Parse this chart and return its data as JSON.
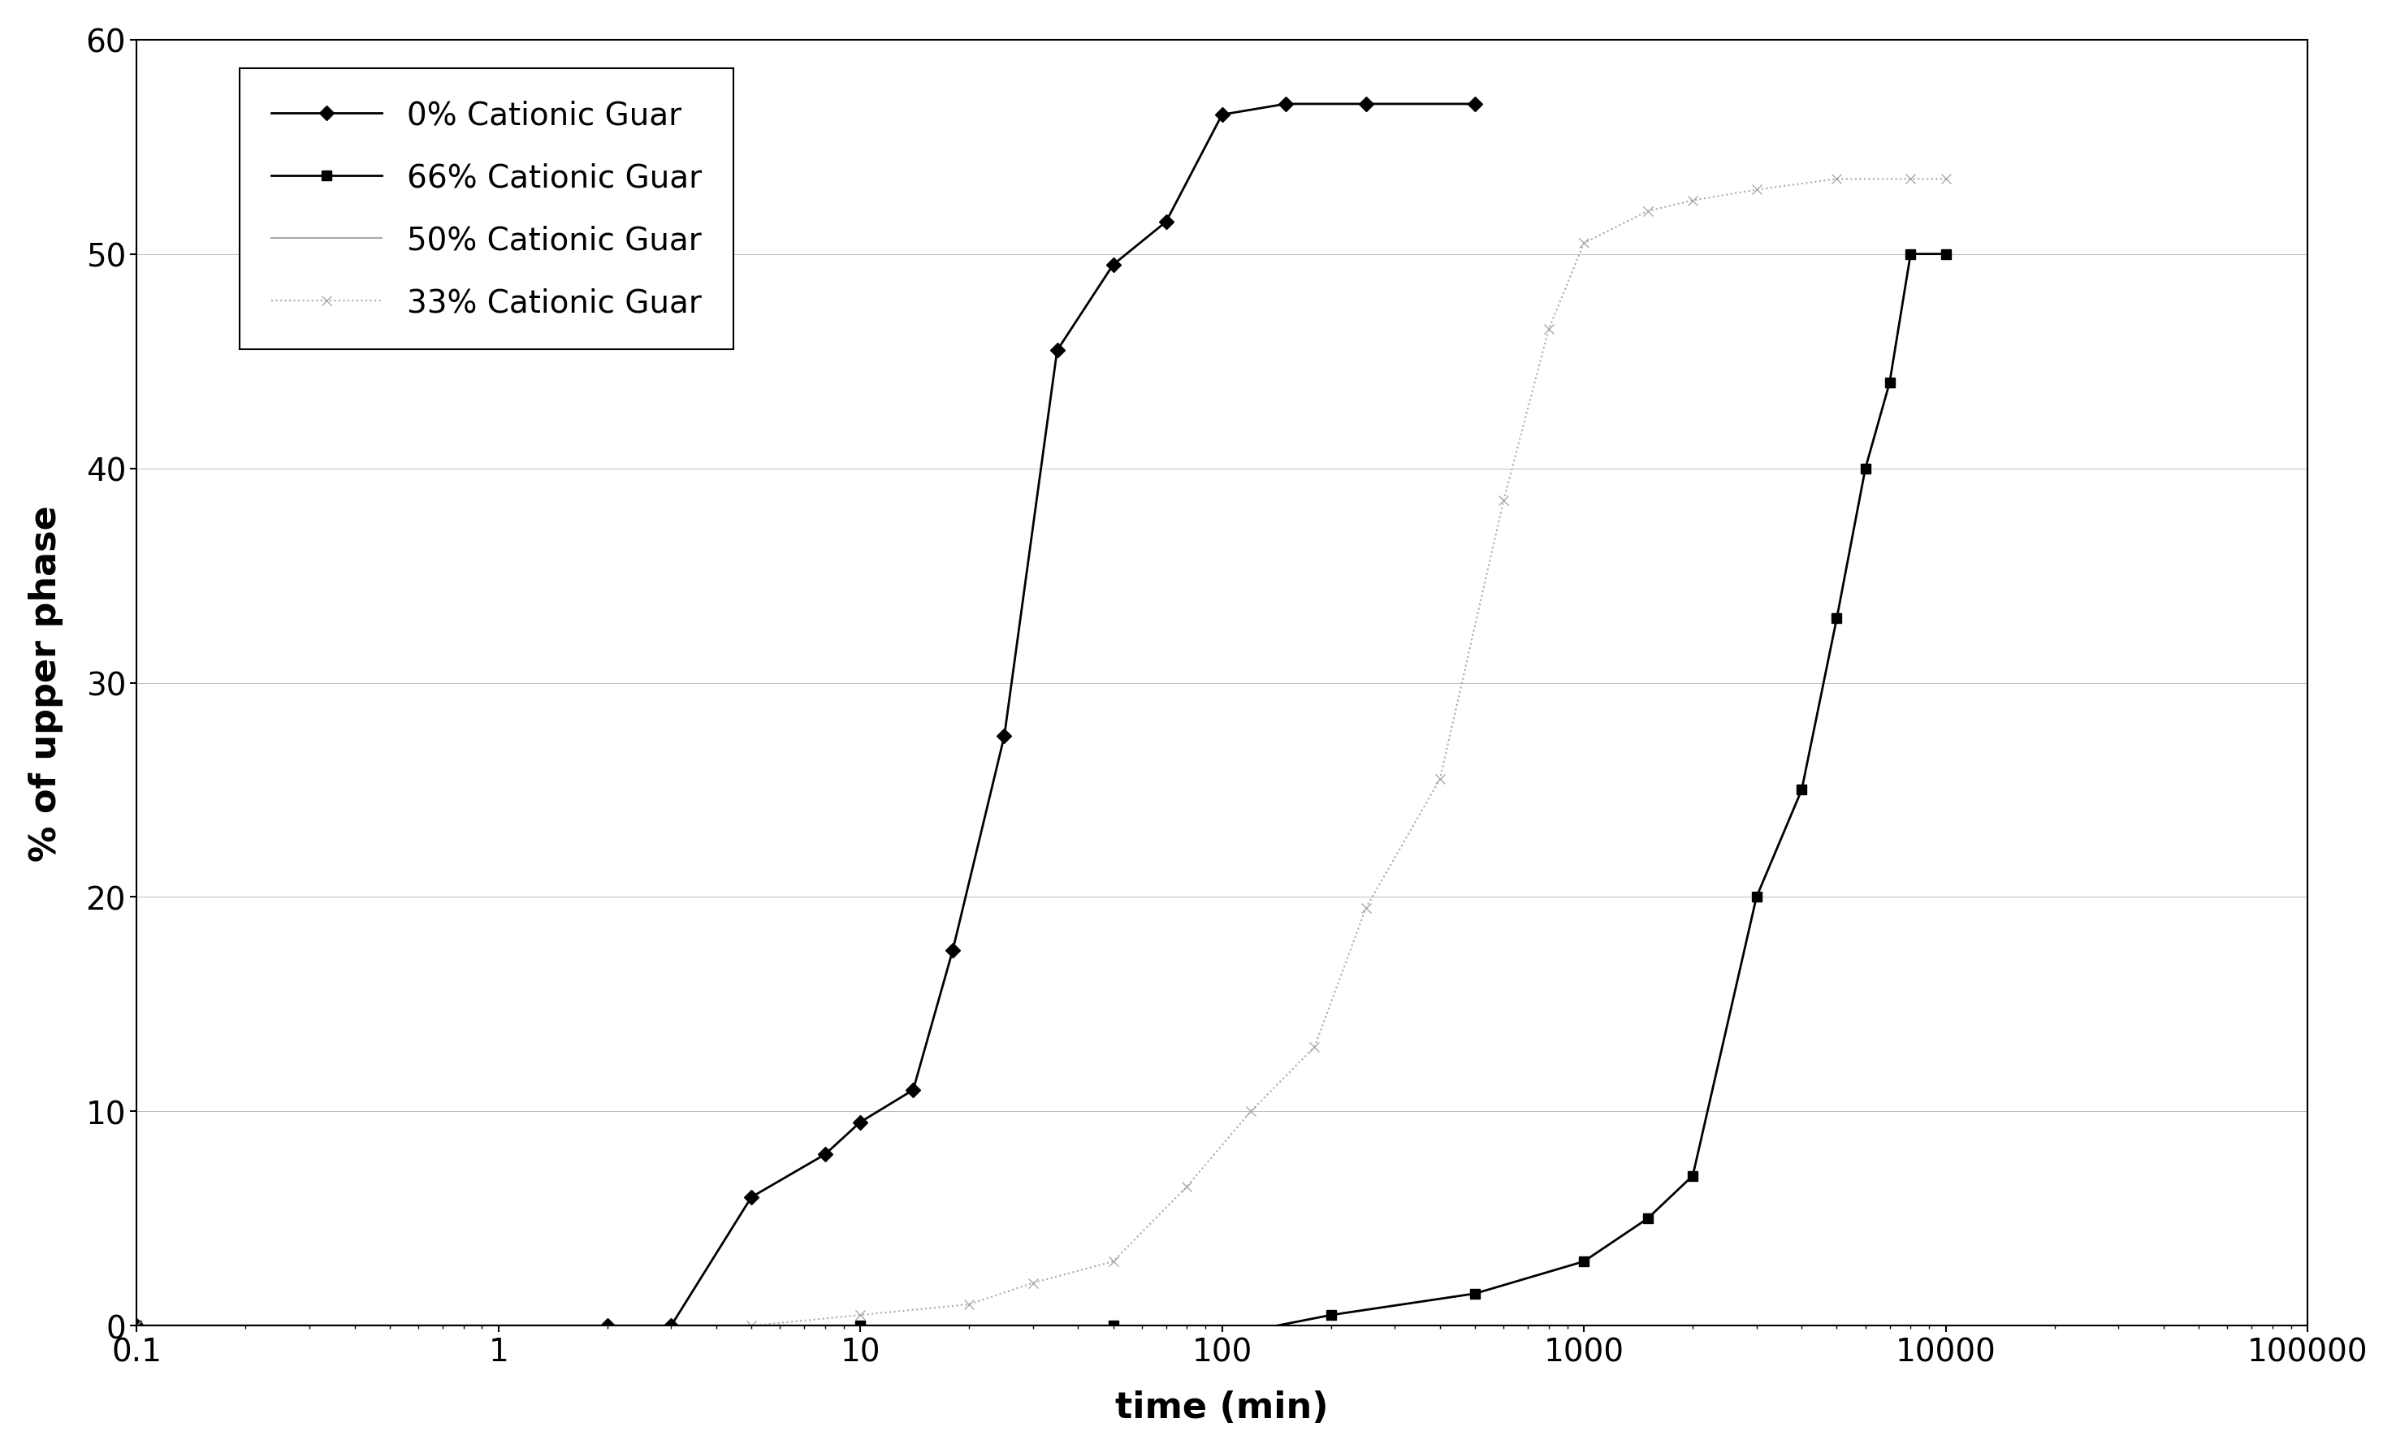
{
  "title": "",
  "xlabel": "time (min)",
  "ylabel": "% of upper phase",
  "xlim_log": [
    0.1,
    100000
  ],
  "ylim": [
    0,
    60
  ],
  "yticks": [
    0,
    10,
    20,
    30,
    40,
    50,
    60
  ],
  "series": [
    {
      "label": "0% Cationic Guar",
      "color": "#000000",
      "marker": "D",
      "markersize": 9,
      "linewidth": 2.0,
      "linestyle": "-",
      "x": [
        0.1,
        2.0,
        3.0,
        5.0,
        8.0,
        10.0,
        14.0,
        18.0,
        25.0,
        35.0,
        50.0,
        70.0,
        100.0,
        150.0,
        250.0,
        500.0
      ],
      "y": [
        0.0,
        0.0,
        0.0,
        6.0,
        8.0,
        9.5,
        11.0,
        17.5,
        27.5,
        45.5,
        49.5,
        51.5,
        56.5,
        57.0,
        57.0,
        57.0
      ]
    },
    {
      "label": "66% Cationic Guar",
      "color": "#000000",
      "marker": "s",
      "markersize": 9,
      "linewidth": 2.0,
      "linestyle": "-",
      "x": [
        0.1,
        10.0,
        50.0,
        70.0,
        100.0,
        200.0,
        500.0,
        1000.0,
        1500.0,
        2000.0,
        3000.0,
        4000.0,
        5000.0,
        6000.0,
        7000.0,
        8000.0,
        10000.0
      ],
      "y": [
        0.0,
        0.0,
        0.0,
        -0.5,
        -0.5,
        0.5,
        1.5,
        3.0,
        5.0,
        7.0,
        20.0,
        25.0,
        33.0,
        40.0,
        44.0,
        50.0,
        50.0
      ]
    },
    {
      "label": "50% Cationic Guar",
      "color": "#aaaaaa",
      "marker": "None",
      "markersize": 6,
      "linewidth": 1.5,
      "linestyle": "-",
      "x": [],
      "y": []
    },
    {
      "label": "33% Cationic Guar",
      "color": "#aaaaaa",
      "marker": "x",
      "markersize": 9,
      "linewidth": 1.5,
      "linestyle": ":",
      "x": [
        0.1,
        5.0,
        10.0,
        20.0,
        30.0,
        50.0,
        80.0,
        120.0,
        180.0,
        250.0,
        400.0,
        600.0,
        800.0,
        1000.0,
        1500.0,
        2000.0,
        3000.0,
        5000.0,
        8000.0,
        10000.0
      ],
      "y": [
        0.0,
        0.0,
        0.5,
        1.0,
        2.0,
        3.0,
        6.5,
        10.0,
        13.0,
        19.5,
        25.5,
        38.5,
        46.5,
        50.5,
        52.0,
        52.5,
        53.0,
        53.5,
        53.5,
        53.5
      ]
    }
  ],
  "background_color": "#ffffff",
  "grid_color": "#bbbbbb",
  "grid_linestyle": "-",
  "grid_linewidth": 0.7
}
